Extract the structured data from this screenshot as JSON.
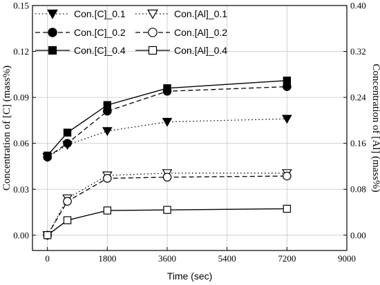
{
  "chart_data": {
    "type": "line",
    "title": "",
    "xlabel": "Time (sec)",
    "ylabel_left": "Concentration of [C] (mass%)",
    "ylabel_right": "Concentration of [Al] (mass%)",
    "xlim": [
      -450,
      9000
    ],
    "ylim_left": [
      -0.01,
      0.15
    ],
    "ylim_right": [
      -0.0267,
      0.4
    ],
    "x_ticks": [
      0,
      1800,
      3600,
      5400,
      7200,
      9000
    ],
    "x_tick_labels": [
      "0",
      "1800",
      "3600",
      "5400",
      "7200",
      "9000"
    ],
    "y_left_ticks": [
      0.0,
      0.03,
      0.06,
      0.09,
      0.12,
      0.15
    ],
    "y_left_tick_labels": [
      "0.00",
      "0.03",
      "0.06",
      "0.09",
      "0.12",
      "0.15"
    ],
    "y_right_ticks": [
      0.0,
      0.08,
      0.16,
      0.24,
      0.32,
      0.4
    ],
    "y_right_tick_labels": [
      "0.00",
      "0.08",
      "0.16",
      "0.24",
      "0.32",
      "0.40"
    ],
    "grid": true,
    "legend_position": "top-left",
    "series": [
      {
        "name": "Con.[C]_0.1",
        "axis": "left",
        "marker": "triangle-down",
        "filled": true,
        "line": "dotted",
        "x": [
          0,
          600,
          1800,
          3600,
          7200
        ],
        "y": [
          0.051,
          0.059,
          0.068,
          0.074,
          0.076
        ]
      },
      {
        "name": "Con.[C]_0.2",
        "axis": "left",
        "marker": "circle",
        "filled": true,
        "line": "dashed",
        "x": [
          0,
          600,
          1800,
          3600,
          7200
        ],
        "y": [
          0.051,
          0.06,
          0.081,
          0.094,
          0.097
        ]
      },
      {
        "name": "Con.[C]_0.4",
        "axis": "left",
        "marker": "square",
        "filled": true,
        "line": "solid",
        "x": [
          0,
          600,
          1800,
          3600,
          7200
        ],
        "y": [
          0.052,
          0.067,
          0.085,
          0.096,
          0.101
        ]
      },
      {
        "name": "Con.[Al]_0.1",
        "axis": "right",
        "marker": "triangle-down",
        "filled": false,
        "line": "dotted",
        "x": [
          0,
          600,
          1800,
          3600,
          7200
        ],
        "y": [
          0.0,
          0.064,
          0.104,
          0.108,
          0.108
        ]
      },
      {
        "name": "Con.[Al]_0.2",
        "axis": "right",
        "marker": "circle",
        "filled": false,
        "line": "dashed",
        "x": [
          0,
          600,
          1800,
          3600,
          7200
        ],
        "y": [
          0.0,
          0.059,
          0.099,
          0.101,
          0.103
        ]
      },
      {
        "name": "Con.[Al]_0.4",
        "axis": "right",
        "marker": "square",
        "filled": false,
        "line": "solid",
        "x": [
          0,
          600,
          1800,
          3600,
          7200
        ],
        "y": [
          0.0,
          0.026,
          0.043,
          0.044,
          0.046
        ]
      }
    ]
  }
}
